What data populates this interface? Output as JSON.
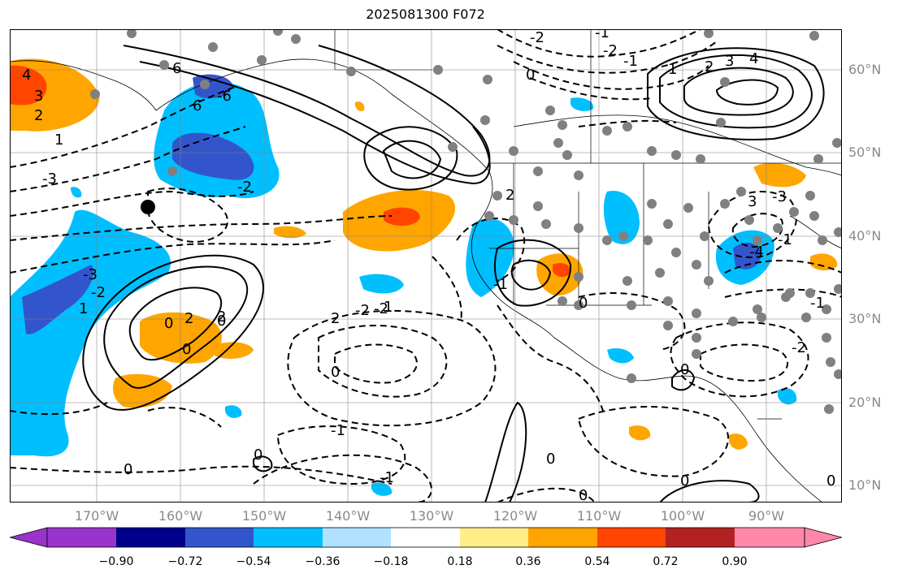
{
  "title": "2025081300 F072",
  "lat_labels": [
    "60°N",
    "50°N",
    "40°N",
    "30°N",
    "20°N",
    "10°N"
  ],
  "lon_labels": [
    "170°W",
    "160°W",
    "150°W",
    "140°W",
    "130°W",
    "120°W",
    "110°W",
    "100°W",
    "90°W"
  ],
  "colorbar": {
    "ticks": [
      "−0.90",
      "−0.72",
      "−0.54",
      "−0.36",
      "−0.18",
      "0.18",
      "0.36",
      "0.54",
      "0.72",
      "0.90"
    ],
    "colors": [
      "#9933cc",
      "#00008b",
      "#3355cc",
      "#00bfff",
      "#b0e2ff",
      "#ffffff",
      "#ffee88",
      "#ffa500",
      "#ff4500",
      "#b22222",
      "#ff88aa"
    ]
  },
  "contour_labels": [
    "4",
    "3",
    "2",
    "1",
    "-3",
    "6",
    "6",
    "-6",
    "-2",
    "-3",
    "-2",
    "1",
    "0",
    "0",
    "0",
    "0",
    "2",
    "2",
    "-2",
    "-2",
    "1",
    "-1",
    "0",
    "0",
    "-1",
    "0",
    "-2",
    "-1",
    "0",
    "3",
    "-3",
    "-4",
    "-1",
    "4",
    "3",
    "2",
    "1",
    "-1",
    "-2",
    "0",
    "-1",
    "0",
    "-2",
    "-1",
    "0",
    "0",
    "2",
    "2",
    "0"
  ],
  "colors": {
    "solid_contour": "#000000",
    "axis_label": "#8a8a8a",
    "grid": "#808080",
    "station_dot": "#808080"
  }
}
